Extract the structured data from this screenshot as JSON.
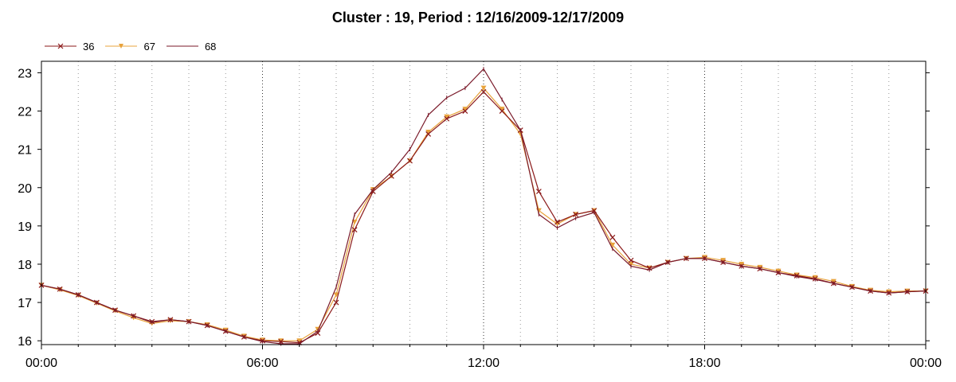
{
  "chart_data": {
    "type": "line",
    "title": "Cluster : 19, Period : 12/16/2009-12/17/2009",
    "xlabel": "",
    "ylabel": "",
    "x_unit": "hours",
    "xlim": [
      0,
      24
    ],
    "ylim": [
      15.9,
      23.3
    ],
    "x_ticks": [
      {
        "x": 0,
        "label": "00:00"
      },
      {
        "x": 6,
        "label": "06:00"
      },
      {
        "x": 12,
        "label": "12:00"
      },
      {
        "x": 18,
        "label": "18:00"
      },
      {
        "x": 24,
        "label": "00:00"
      }
    ],
    "y_ticks": [
      16,
      17,
      18,
      19,
      20,
      21,
      22,
      23
    ],
    "grid": {
      "vertical": true,
      "horizontal": false,
      "style": "dotted"
    },
    "legend_position": "top-left",
    "colors": {
      "36": "#8b1a1a",
      "67": "#e8a33c",
      "68": "#7a1a2a"
    },
    "series": [
      {
        "name": "36",
        "marker": "x",
        "x": [
          0,
          0.5,
          1,
          1.5,
          2,
          2.5,
          3,
          3.5,
          4,
          4.5,
          5,
          5.5,
          6,
          6.5,
          7,
          7.5,
          8,
          8.5,
          9,
          9.5,
          10,
          10.5,
          11,
          11.5,
          12,
          12.5,
          13,
          13.5,
          14,
          14.5,
          15,
          15.5,
          16,
          16.5,
          17,
          17.5,
          18,
          18.5,
          19,
          19.5,
          20,
          20.5,
          21,
          21.5,
          22,
          22.5,
          23,
          23.5,
          24
        ],
        "values": [
          17.45,
          17.35,
          17.2,
          17.0,
          16.8,
          16.65,
          16.5,
          16.55,
          16.5,
          16.4,
          16.25,
          16.1,
          16.0,
          15.98,
          15.95,
          16.2,
          17.0,
          18.9,
          19.9,
          20.3,
          20.7,
          21.4,
          21.8,
          22.0,
          22.5,
          22.0,
          21.5,
          19.9,
          19.1,
          19.3,
          19.4,
          18.7,
          18.1,
          17.9,
          18.05,
          18.15,
          18.15,
          18.05,
          17.95,
          17.88,
          17.78,
          17.7,
          17.62,
          17.5,
          17.4,
          17.3,
          17.25,
          17.28,
          17.3
        ]
      },
      {
        "name": "67",
        "marker": "triangle-down",
        "x": [
          0,
          0.5,
          1,
          1.5,
          2,
          2.5,
          3,
          3.5,
          4,
          4.5,
          5,
          5.5,
          6,
          6.5,
          7,
          7.5,
          8,
          8.5,
          9,
          9.5,
          10,
          10.5,
          11,
          11.5,
          12,
          12.5,
          13,
          13.5,
          14,
          14.5,
          15,
          15.5,
          16,
          16.5,
          17,
          17.5,
          18,
          18.5,
          19,
          19.5,
          20,
          20.5,
          21,
          21.5,
          22,
          22.5,
          23,
          23.5,
          24
        ],
        "values": [
          17.45,
          17.33,
          17.18,
          16.98,
          16.78,
          16.6,
          16.45,
          16.52,
          16.5,
          16.42,
          16.28,
          16.12,
          16.02,
          16.0,
          16.0,
          16.3,
          17.2,
          19.1,
          19.95,
          20.3,
          20.7,
          21.45,
          21.85,
          22.05,
          22.6,
          22.05,
          21.4,
          19.4,
          19.05,
          19.3,
          19.4,
          18.5,
          18.0,
          17.9,
          18.05,
          18.15,
          18.18,
          18.1,
          18.0,
          17.92,
          17.82,
          17.72,
          17.65,
          17.55,
          17.42,
          17.32,
          17.28,
          17.3,
          17.3
        ]
      },
      {
        "name": "68",
        "marker": "tick",
        "x": [
          0,
          0.5,
          1,
          1.5,
          2,
          2.5,
          3,
          3.5,
          4,
          4.5,
          5,
          5.5,
          6,
          6.5,
          7,
          7.5,
          8,
          8.5,
          9,
          9.5,
          10,
          10.5,
          11,
          11.5,
          12,
          12.5,
          13,
          13.5,
          14,
          14.5,
          15,
          15.5,
          16,
          16.5,
          17,
          17.5,
          18,
          18.5,
          19,
          19.5,
          20,
          20.5,
          21,
          21.5,
          22,
          22.5,
          23,
          23.5,
          24
        ],
        "values": [
          17.45,
          17.35,
          17.2,
          17.0,
          16.8,
          16.65,
          16.48,
          16.55,
          16.5,
          16.4,
          16.25,
          16.1,
          15.98,
          15.92,
          15.92,
          16.25,
          17.4,
          19.3,
          19.95,
          20.4,
          21.0,
          21.9,
          22.35,
          22.6,
          23.1,
          22.3,
          21.5,
          19.3,
          18.95,
          19.2,
          19.35,
          18.4,
          17.95,
          17.85,
          18.05,
          18.15,
          18.15,
          18.05,
          17.95,
          17.88,
          17.78,
          17.68,
          17.6,
          17.5,
          17.4,
          17.3,
          17.25,
          17.28,
          17.3
        ]
      }
    ]
  }
}
